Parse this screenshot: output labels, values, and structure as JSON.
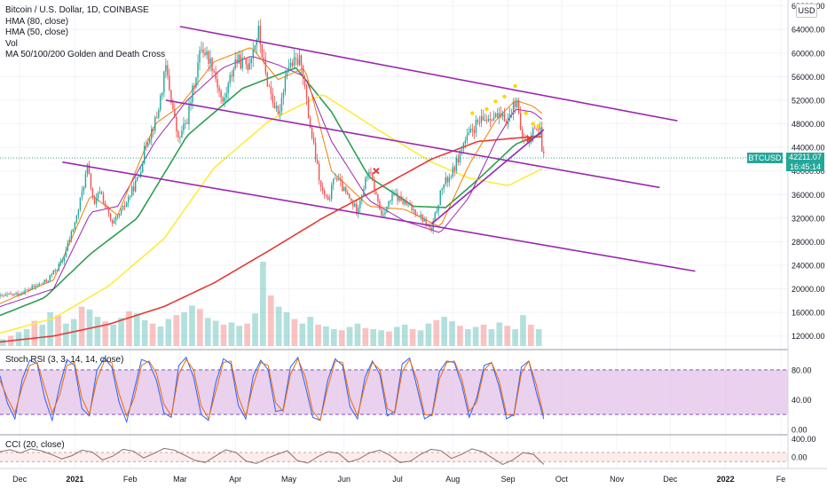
{
  "legend": {
    "title": "Bitcoin / U.S. Dollar, 1D, COINBASE",
    "indicators": [
      "HMA (80, close)",
      "HMA (50, close)",
      "Vol",
      "MA 50/100/200 Golden and Death Cross"
    ]
  },
  "unit": "USD",
  "last_price": {
    "symbol": "BTCUSD",
    "value": "42211.07",
    "countdown": "16:45:14"
  },
  "panes": {
    "rsi_label": "Stoch RSI (3, 3, 14, 14, close)",
    "cci_label": "CCI (20, close)"
  },
  "colors": {
    "up": "#26a69a",
    "down": "#ef5350",
    "channel": "#9c27b0",
    "ma50": "#2e9e4f",
    "ma100": "#ffeb3b",
    "ma200": "#e53935",
    "hma80": "#9c27b0",
    "hma50": "#f57c00",
    "stoch_k": "#2962ff",
    "stoch_d": "#ef6c00",
    "rsi_band": "#e1bee7",
    "cci_line": "#8d6e63"
  },
  "chart_data": [
    {
      "type": "candlestick",
      "y_axis": {
        "ticks": [
          "68000.00",
          "64000.00",
          "60000.00",
          "56000.00",
          "52000.00",
          "48000.00",
          "44000.00",
          "40000.00",
          "36000.00",
          "32000.00",
          "28000.00",
          "24000.00",
          "20000.00",
          "16000.00",
          "12000.00"
        ],
        "tick_values": [
          68000,
          64000,
          60000,
          56000,
          52000,
          48000,
          44000,
          40000,
          36000,
          32000,
          28000,
          24000,
          20000,
          16000,
          12000
        ],
        "range": [
          10000,
          69000
        ]
      },
      "x_axis": {
        "ticks": [
          "Dec",
          "2021",
          "Feb",
          "Mar",
          "Apr",
          "May",
          "Jun",
          "Jul",
          "Aug",
          "Sep",
          "Oct",
          "Nov",
          "Dec",
          "2022",
          "Fe"
        ],
        "tick_dates": [
          "2020-12-01",
          "2021-01-01",
          "2021-02-01",
          "2021-03-01",
          "2021-04-01",
          "2021-05-01",
          "2021-06-01",
          "2021-07-01",
          "2021-08-01",
          "2021-09-01",
          "2021-10-01",
          "2021-11-01",
          "2021-12-01",
          "2022-01-01",
          "2022-02-01"
        ],
        "range": [
          "2020-11-20",
          "2022-02-05"
        ]
      },
      "close_anchors": [
        [
          "2020-11-20",
          18700
        ],
        [
          "2020-12-01",
          19200
        ],
        [
          "2020-12-16",
          21300
        ],
        [
          "2020-12-25",
          24700
        ],
        [
          "2021-01-02",
          32200
        ],
        [
          "2021-01-08",
          40600
        ],
        [
          "2021-01-12",
          34000
        ],
        [
          "2021-01-15",
          36800
        ],
        [
          "2021-01-22",
          30700
        ],
        [
          "2021-01-28",
          33500
        ],
        [
          "2021-02-06",
          39200
        ],
        [
          "2021-02-10",
          44800
        ],
        [
          "2021-02-16",
          49100
        ],
        [
          "2021-02-21",
          57500
        ],
        [
          "2021-02-28",
          45100
        ],
        [
          "2021-03-05",
          48800
        ],
        [
          "2021-03-13",
          61200
        ],
        [
          "2021-03-19",
          58100
        ],
        [
          "2021-03-25",
          51300
        ],
        [
          "2021-04-01",
          58800
        ],
        [
          "2021-04-08",
          58000
        ],
        [
          "2021-04-14",
          63600
        ],
        [
          "2021-04-18",
          56200
        ],
        [
          "2021-04-25",
          49100
        ],
        [
          "2021-04-30",
          57700
        ],
        [
          "2021-05-08",
          58800
        ],
        [
          "2021-05-12",
          49300
        ],
        [
          "2021-05-19",
          37000
        ],
        [
          "2021-05-23",
          34600
        ],
        [
          "2021-05-27",
          39300
        ],
        [
          "2021-06-01",
          36600
        ],
        [
          "2021-06-08",
          33400
        ],
        [
          "2021-06-15",
          40200
        ],
        [
          "2021-06-22",
          32500
        ],
        [
          "2021-06-29",
          36000
        ],
        [
          "2021-07-06",
          34200
        ],
        [
          "2021-07-13",
          32700
        ],
        [
          "2021-07-20",
          29800
        ],
        [
          "2021-07-26",
          37300
        ],
        [
          "2021-08-01",
          39900
        ],
        [
          "2021-08-07",
          44600
        ],
        [
          "2021-08-14",
          47800
        ],
        [
          "2021-08-23",
          49500
        ],
        [
          "2021-08-27",
          48900
        ],
        [
          "2021-09-01",
          48800
        ],
        [
          "2021-09-06",
          52600
        ],
        [
          "2021-09-08",
          46100
        ],
        [
          "2021-09-13",
          44900
        ],
        [
          "2021-09-16",
          47700
        ],
        [
          "2021-09-19",
          47300
        ],
        [
          "2021-09-20",
          43000
        ],
        [
          "2021-09-21",
          42211
        ]
      ],
      "moving_averages": [
        {
          "name": "MA 50",
          "color": "ma50",
          "points": [
            [
              "2020-11-20",
              15500
            ],
            [
              "2020-12-15",
              18500
            ],
            [
              "2021-01-10",
              26000
            ],
            [
              "2021-02-05",
              32000
            ],
            [
              "2021-03-05",
              46000
            ],
            [
              "2021-04-05",
              54000
            ],
            [
              "2021-05-05",
              57500
            ],
            [
              "2021-05-25",
              50000
            ],
            [
              "2021-06-15",
              39000
            ],
            [
              "2021-07-10",
              34000
            ],
            [
              "2021-07-28",
              33800
            ],
            [
              "2021-08-15",
              38500
            ],
            [
              "2021-09-05",
              44500
            ],
            [
              "2021-09-21",
              46500
            ]
          ]
        },
        {
          "name": "MA 100",
          "color": "ma100",
          "points": [
            [
              "2020-11-20",
              12500
            ],
            [
              "2020-12-20",
              15000
            ],
            [
              "2021-01-20",
              20500
            ],
            [
              "2021-02-20",
              28500
            ],
            [
              "2021-03-20",
              40500
            ],
            [
              "2021-04-20",
              48500
            ],
            [
              "2021-05-20",
              53000
            ],
            [
              "2021-06-20",
              47000
            ],
            [
              "2021-07-20",
              41500
            ],
            [
              "2021-08-10",
              38800
            ],
            [
              "2021-09-01",
              37500
            ],
            [
              "2021-09-21",
              40500
            ]
          ]
        },
        {
          "name": "MA 200",
          "color": "ma200",
          "points": [
            [
              "2020-11-20",
              11000
            ],
            [
              "2020-12-20",
              12000
            ],
            [
              "2021-01-20",
              14000
            ],
            [
              "2021-02-20",
              17000
            ],
            [
              "2021-03-20",
              21000
            ],
            [
              "2021-04-20",
              26500
            ],
            [
              "2021-05-20",
              32000
            ],
            [
              "2021-06-20",
              37000
            ],
            [
              "2021-07-20",
              42000
            ],
            [
              "2021-08-15",
              45000
            ],
            [
              "2021-09-10",
              45700
            ],
            [
              "2021-09-21",
              45800
            ]
          ]
        },
        {
          "name": "HMA 80",
          "color": "hma80",
          "points": [
            [
              "2020-11-20",
              17000
            ],
            [
              "2020-12-20",
              20000
            ],
            [
              "2021-01-10",
              33000
            ],
            [
              "2021-01-25",
              34000
            ],
            [
              "2021-02-15",
              45000
            ],
            [
              "2021-03-05",
              52000
            ],
            [
              "2021-03-25",
              57500
            ],
            [
              "2021-04-10",
              59500
            ],
            [
              "2021-04-25",
              58000
            ],
            [
              "2021-05-10",
              56000
            ],
            [
              "2021-05-25",
              45000
            ],
            [
              "2021-06-15",
              35000
            ],
            [
              "2021-07-05",
              31500
            ],
            [
              "2021-07-25",
              29500
            ],
            [
              "2021-08-10",
              35500
            ],
            [
              "2021-08-25",
              45000
            ],
            [
              "2021-09-05",
              50500
            ],
            [
              "2021-09-15",
              50000
            ],
            [
              "2021-09-21",
              48500
            ]
          ]
        },
        {
          "name": "HMA 50",
          "color": "hma50",
          "points": [
            [
              "2020-11-20",
              17500
            ],
            [
              "2020-12-20",
              21500
            ],
            [
              "2021-01-10",
              36000
            ],
            [
              "2021-01-25",
              32500
            ],
            [
              "2021-02-15",
              48000
            ],
            [
              "2021-03-01",
              51000
            ],
            [
              "2021-03-20",
              58500
            ],
            [
              "2021-04-10",
              61000
            ],
            [
              "2021-04-25",
              55500
            ],
            [
              "2021-05-10",
              57500
            ],
            [
              "2021-05-25",
              40000
            ],
            [
              "2021-06-15",
              34000
            ],
            [
              "2021-07-05",
              33500
            ],
            [
              "2021-07-25",
              30500
            ],
            [
              "2021-08-10",
              41000
            ],
            [
              "2021-08-25",
              48500
            ],
            [
              "2021-09-05",
              52000
            ],
            [
              "2021-09-15",
              51000
            ],
            [
              "2021-09-21",
              49500
            ]
          ]
        }
      ],
      "trendlines": [
        {
          "color": "channel",
          "from": [
            "2021-03-01",
            64500
          ],
          "to": [
            "2021-12-05",
            48500
          ]
        },
        {
          "color": "channel",
          "from": [
            "2021-02-21",
            52000
          ],
          "to": [
            "2021-11-25",
            37200
          ]
        },
        {
          "color": "channel",
          "from": [
            "2020-12-25",
            41500
          ],
          "to": [
            "2021-12-15",
            23000
          ]
        },
        {
          "color": "channel",
          "from": [
            "2021-07-20",
            31000
          ],
          "to": [
            "2021-09-21",
            47000
          ]
        }
      ],
      "cross_markers": [
        {
          "date": "2021-06-19",
          "value": 40000
        },
        {
          "date": "2021-09-13",
          "value": 45500
        }
      ],
      "signal_markers": [
        [
          "2021-08-12",
          49800
        ],
        [
          "2021-08-20",
          50500
        ],
        [
          "2021-08-25",
          51800
        ],
        [
          "2021-08-30",
          52600
        ],
        [
          "2021-09-05",
          54400
        ],
        [
          "2021-09-11",
          49800
        ],
        [
          "2021-09-15",
          48000
        ],
        [
          "2021-09-18",
          47600
        ]
      ]
    },
    {
      "type": "line",
      "title": "Stoch RSI (3, 3, 14, 14, close)",
      "y_axis": {
        "ticks": [
          "80.00",
          "40.00",
          "0.00"
        ],
        "tick_values": [
          80,
          40,
          0
        ],
        "range": [
          -5,
          105
        ],
        "band": [
          20,
          80
        ]
      },
      "series": [
        {
          "name": "K",
          "color": "stoch_k",
          "values": [
            72,
            35,
            14,
            68,
            93,
            88,
            42,
            12,
            58,
            94,
            86,
            28,
            18,
            79,
            96,
            84,
            36,
            10,
            52,
            94,
            90,
            66,
            22,
            16,
            86,
            97,
            70,
            20,
            12,
            64,
            95,
            88,
            32,
            14,
            72,
            93,
            80,
            24,
            26,
            84,
            97,
            58,
            16,
            12,
            66,
            95,
            86,
            30,
            14,
            70,
            92,
            74,
            18,
            24,
            88,
            96,
            56,
            14,
            20,
            78,
            92,
            90,
            60,
            16,
            42,
            86,
            90,
            58,
            14,
            20,
            84,
            92,
            50,
            14
          ]
        },
        {
          "name": "D",
          "color": "stoch_k",
          "values": [
            66,
            42,
            22,
            58,
            86,
            90,
            56,
            22,
            46,
            86,
            90,
            42,
            20,
            66,
            92,
            90,
            48,
            18,
            42,
            86,
            92,
            76,
            34,
            18,
            74,
            94,
            80,
            32,
            14,
            52,
            90,
            92,
            44,
            18,
            60,
            90,
            86,
            36,
            24,
            74,
            95,
            70,
            24,
            12,
            56,
            92,
            90,
            42,
            18,
            60,
            90,
            80,
            28,
            22,
            78,
            94,
            66,
            20,
            18,
            68,
            90,
            92,
            68,
            24,
            36,
            80,
            90,
            66,
            20,
            18,
            76,
            92,
            60,
            18
          ]
        }
      ]
    },
    {
      "type": "line",
      "title": "CCI (20, close)",
      "y_axis": {
        "ticks": [
          "400.00",
          "0.00"
        ],
        "tick_values": [
          400,
          0
        ],
        "range": [
          -230,
          450
        ],
        "band": [
          -100,
          100
        ]
      },
      "series": [
        {
          "name": "CCI",
          "color": "cci_line",
          "values": [
            120,
            160,
            90,
            180,
            140,
            60,
            -40,
            30,
            150,
            110,
            -60,
            20,
            170,
            130,
            -20,
            80,
            190,
            150,
            40,
            -70,
            -120,
            20,
            160,
            100,
            -90,
            -140,
            -30,
            60,
            140,
            -80,
            -130,
            10,
            120,
            80,
            -110,
            -40,
            90,
            150,
            40,
            -120,
            -90,
            60,
            170,
            140,
            -30,
            60,
            180,
            120,
            -20,
            -160,
            -60,
            100,
            60,
            -160
          ]
        }
      ]
    },
    {
      "type": "bar",
      "title": "Vol",
      "values": [
        12,
        18,
        25,
        30,
        45,
        38,
        60,
        55,
        40,
        48,
        70,
        65,
        52,
        44,
        38,
        50,
        62,
        58,
        46,
        40,
        35,
        48,
        55,
        60,
        72,
        66,
        50,
        45,
        38,
        42,
        36,
        40,
        58,
        150,
        90,
        70,
        60,
        48,
        40,
        52,
        38,
        35,
        30,
        28,
        34,
        40,
        32,
        30,
        28,
        26,
        34,
        38,
        30,
        28,
        40,
        46,
        52,
        44,
        36,
        30,
        34,
        38,
        30,
        42,
        36,
        30,
        55,
        38,
        30
      ]
    }
  ]
}
